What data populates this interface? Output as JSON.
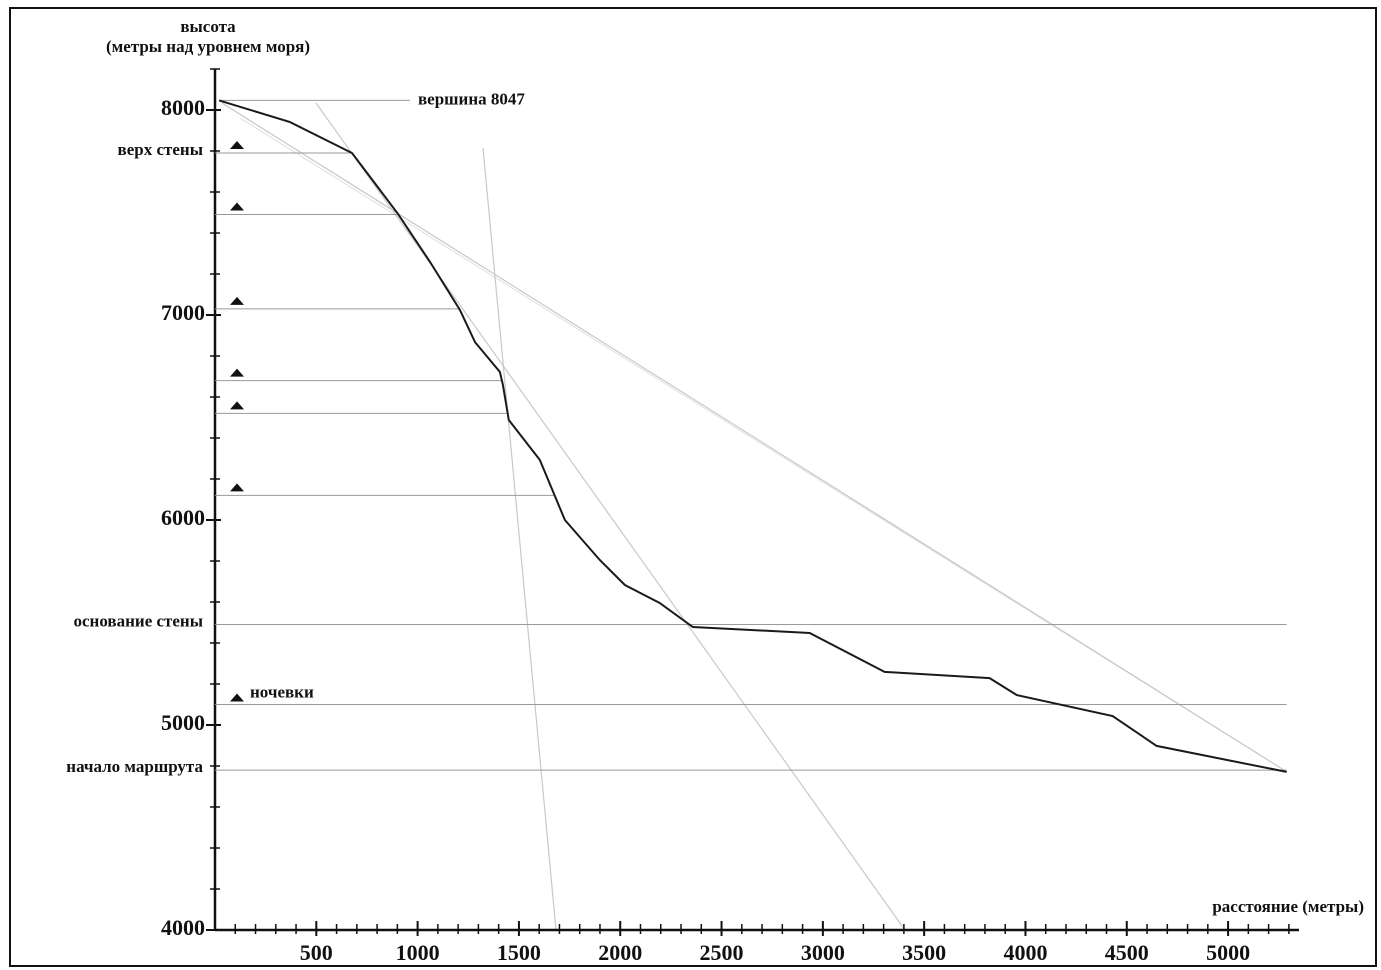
{
  "chart_data": {
    "type": "line",
    "y_label": [
      "высота",
      "(метры над уровнем моря)"
    ],
    "x_label": "расстояние (метры)",
    "x": [
      20,
      370,
      676,
      903,
      1061,
      1209,
      1283,
      1406,
      1421,
      1450,
      1603,
      1727,
      1899,
      2023,
      2195,
      2358,
      2935,
      3305,
      3823,
      3957,
      4430,
      4647,
      5289
    ],
    "values": [
      8047,
      7941,
      7790,
      7493,
      7259,
      7024,
      6868,
      6722,
      6659,
      6488,
      6293,
      6000,
      5805,
      5683,
      5595,
      5478,
      5449,
      5259,
      5229,
      5146,
      5044,
      4898,
      4771
    ],
    "color": "#1a1a1a",
    "xlim": [
      0,
      5350
    ],
    "ylim": [
      4000,
      8200
    ],
    "xticks": [
      500,
      1000,
      1500,
      2000,
      2500,
      3000,
      3500,
      4000,
      4500,
      5000
    ],
    "yticks": [
      4000,
      5000,
      6000,
      7000,
      8000
    ],
    "summit": {
      "text": "вершина 8047",
      "value": 8047
    },
    "annotations": [
      {
        "text": "верх стены",
        "value": 7790
      },
      {
        "text": "основание стены",
        "value": 5490
      },
      {
        "text": "ночевки",
        "value": 5100,
        "marker": "triangle"
      },
      {
        "text": "начало маршрута",
        "value": 4780
      }
    ],
    "camps": [
      7790,
      7490,
      7030,
      6680,
      6520,
      6120
    ]
  }
}
